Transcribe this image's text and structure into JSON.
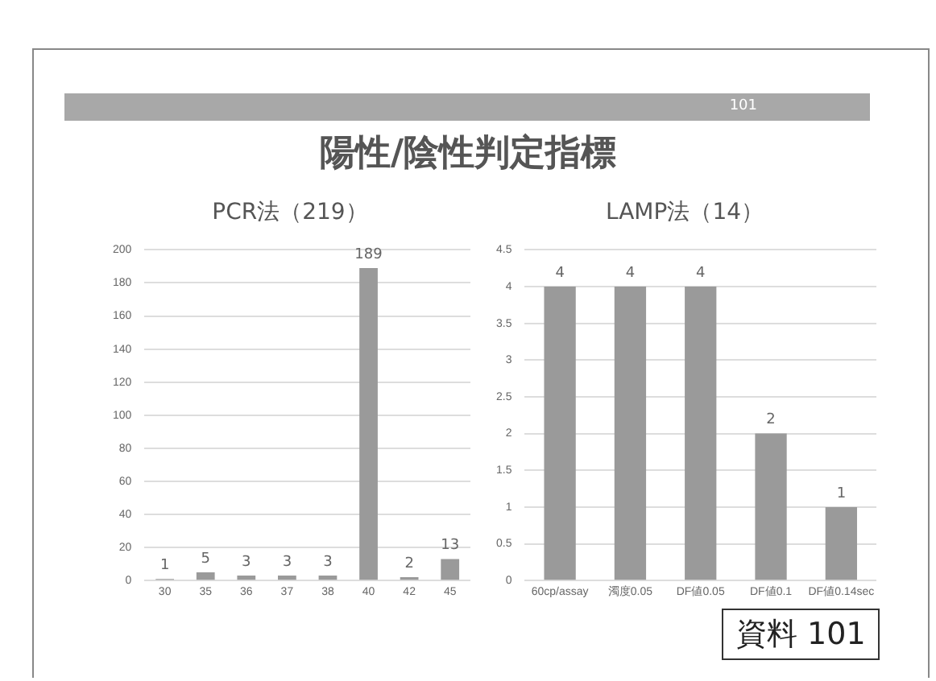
{
  "chart_data": [
    {
      "type": "bar",
      "title": "PCR法（219）",
      "categories": [
        "30",
        "35",
        "36",
        "37",
        "38",
        "40",
        "42",
        "45"
      ],
      "values": [
        1,
        5,
        3,
        3,
        3,
        189,
        2,
        13
      ],
      "color": "#9a9a9a",
      "ylim": [
        0,
        200
      ],
      "yticks": [
        0,
        20,
        40,
        60,
        80,
        100,
        120,
        140,
        160,
        180,
        200
      ],
      "grid": "y",
      "data_labels": true,
      "legend": false,
      "annotations": [
        "101",
        "陽性/陰性判定指標"
      ]
    },
    {
      "type": "bar",
      "title": "LAMP法（14）",
      "categories": [
        "60cp/assay",
        "濁度0.05",
        "DF値0.05",
        "DF値0.1",
        "DF値0.14sec"
      ],
      "values": [
        4,
        4,
        4,
        2,
        1
      ],
      "color": "#9a9a9a",
      "ylim": [
        0,
        4.5
      ],
      "yticks": [
        0,
        0.5,
        1,
        1.5,
        2,
        2.5,
        3,
        3.5,
        4,
        4.5
      ],
      "grid": "y",
      "data_labels": true,
      "legend": false,
      "annotations": [
        "資料 101"
      ]
    }
  ]
}
